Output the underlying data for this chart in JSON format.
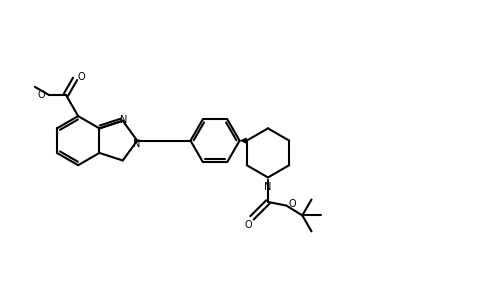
{
  "background_color": "#ffffff",
  "line_color": "#000000",
  "line_width": 1.5,
  "figsize": [
    4.82,
    2.86
  ],
  "dpi": 100,
  "xlim": [
    0,
    10
  ],
  "ylim": [
    0,
    6
  ]
}
